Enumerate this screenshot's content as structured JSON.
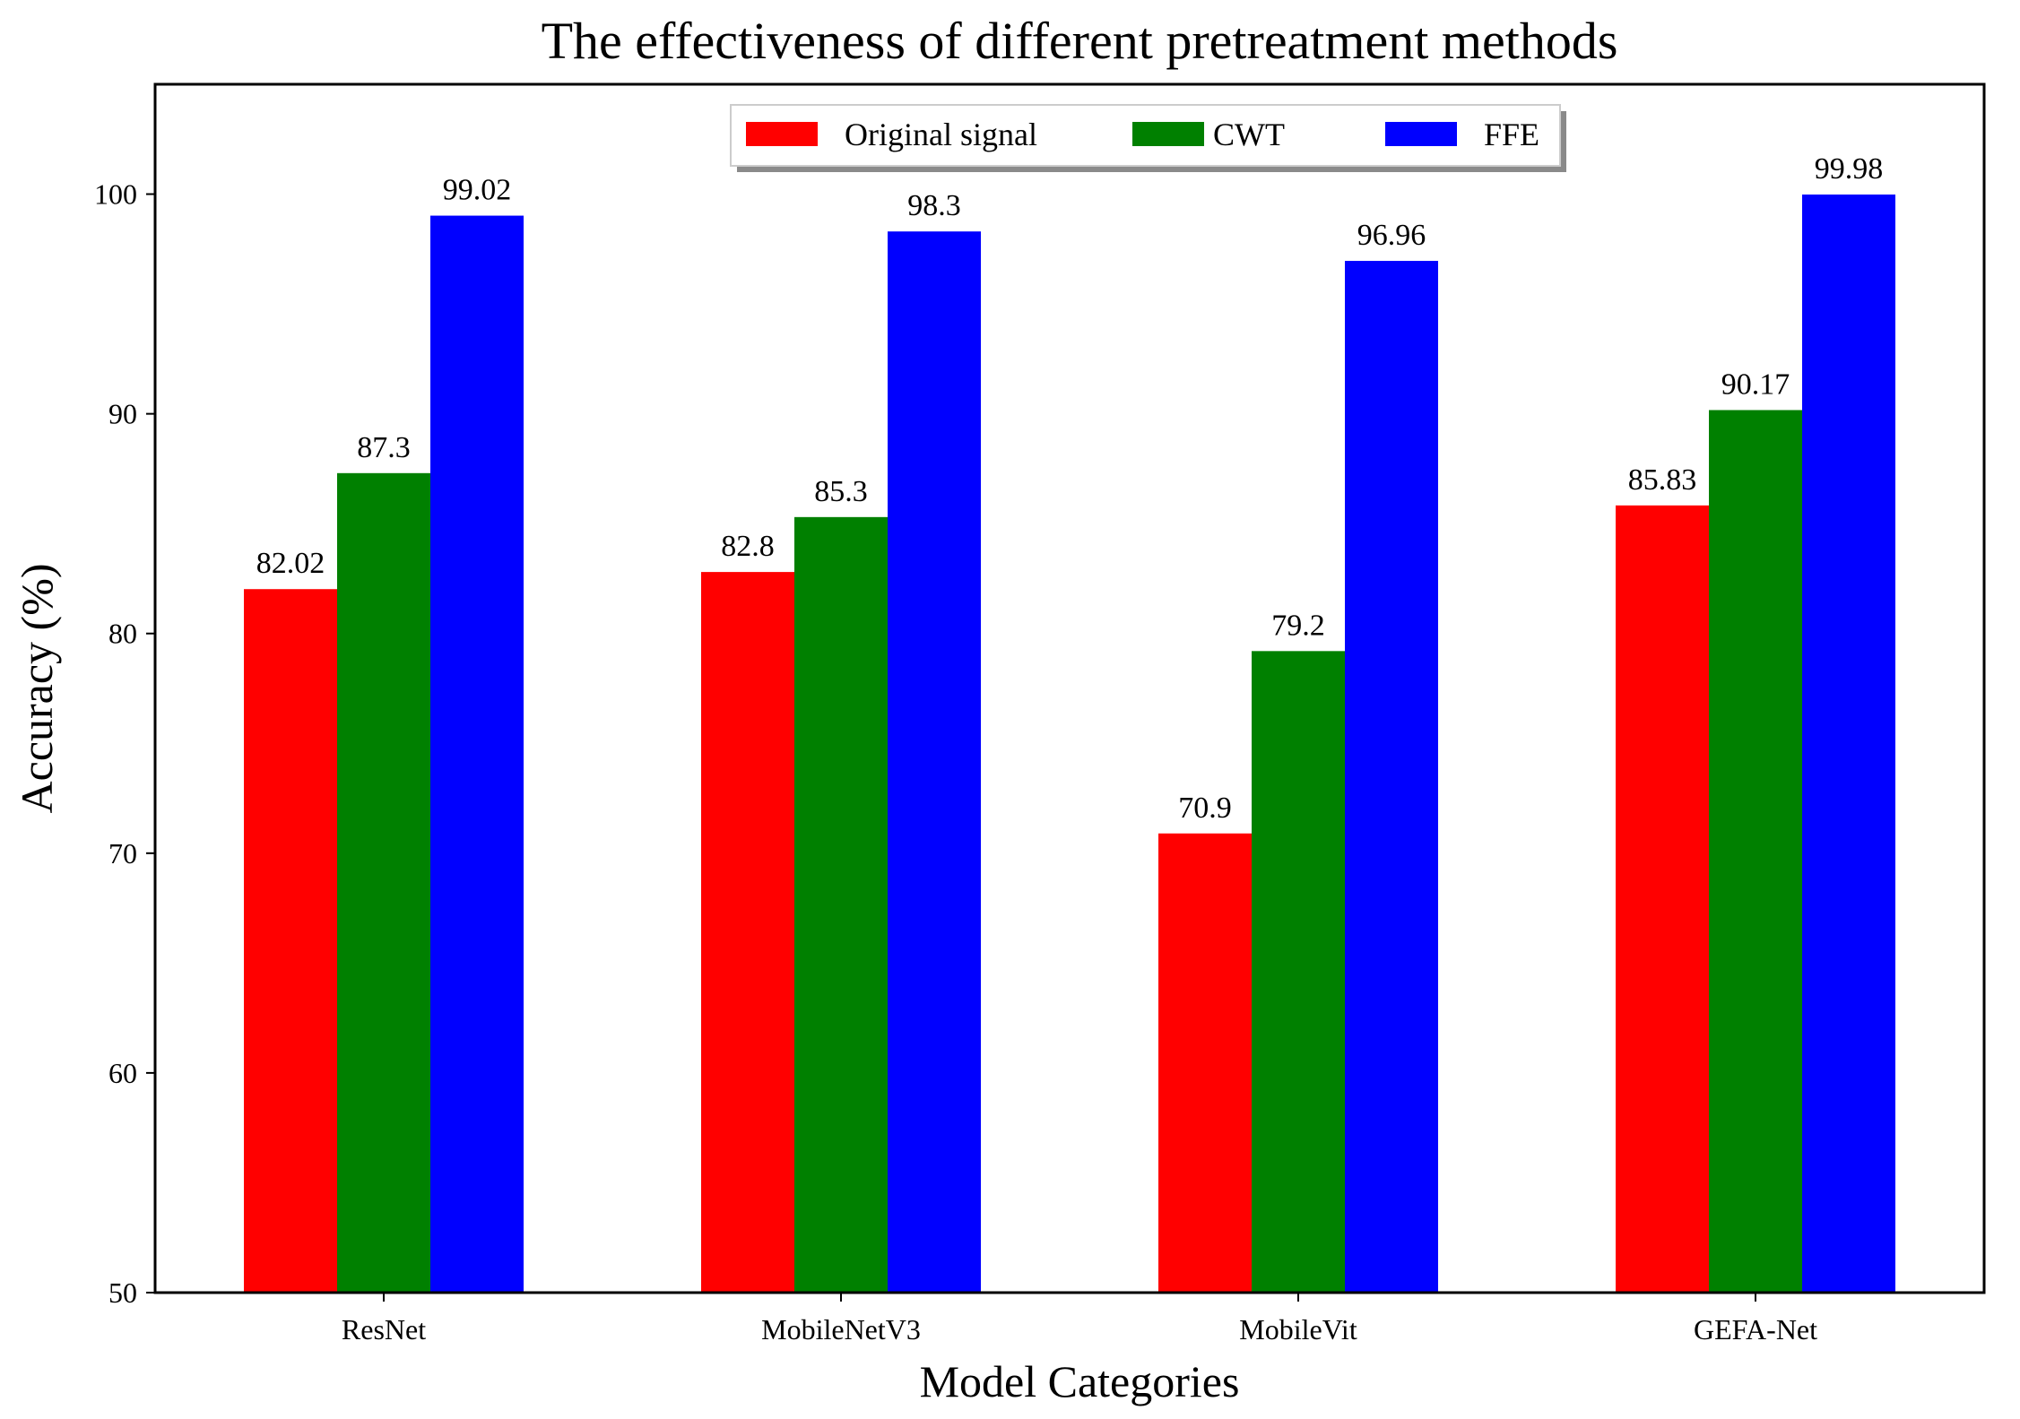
{
  "chart_data": {
    "type": "bar",
    "title": "The effectiveness of different pretreatment methods",
    "xlabel": "Model Categories",
    "ylabel": "Accuracy (%)",
    "ylim": [
      50,
      105
    ],
    "yticks": [
      50,
      60,
      70,
      80,
      90,
      100
    ],
    "categories": [
      "ResNet",
      "MobileNetV3",
      "MobileVit",
      "GEFA-Net"
    ],
    "series": [
      {
        "name": "Original signal",
        "color": "#ff0000",
        "values": [
          82.02,
          82.8,
          70.9,
          85.83
        ],
        "labels": [
          "82.02",
          "82.8",
          "70.9",
          "85.83"
        ]
      },
      {
        "name": "CWT",
        "color": "#008000",
        "values": [
          87.3,
          85.3,
          79.2,
          90.17
        ],
        "labels": [
          "87.3",
          "85.3",
          "79.2",
          "90.17"
        ]
      },
      {
        "name": "FFE",
        "color": "#0000ff",
        "values": [
          99.02,
          98.3,
          96.96,
          99.98
        ],
        "labels": [
          "99.02",
          "98.3",
          "96.96",
          "99.98"
        ]
      }
    ],
    "legend": "top-center",
    "grid": false
  }
}
